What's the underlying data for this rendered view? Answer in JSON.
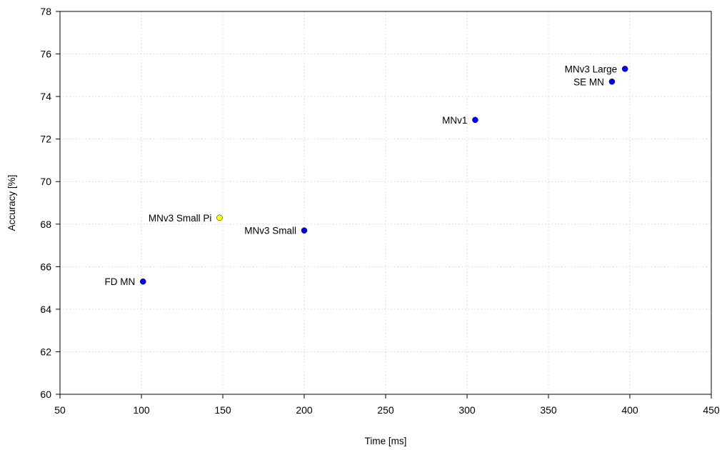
{
  "chart_data": {
    "type": "scatter",
    "title": "",
    "xlabel": "Time [ms]",
    "ylabel": "Accuracy [%]",
    "xlim": [
      50,
      450
    ],
    "ylim": [
      60,
      78
    ],
    "xticks": [
      50,
      100,
      150,
      200,
      250,
      300,
      350,
      400,
      450
    ],
    "yticks": [
      60,
      62,
      64,
      66,
      68,
      70,
      72,
      74,
      76,
      78
    ],
    "grid": true,
    "legend": "none",
    "points": [
      {
        "label": "FD MN",
        "x": 101,
        "y": 65.3,
        "color": "#0000ff"
      },
      {
        "label": "MNv3 Small Pi",
        "x": 148,
        "y": 68.3,
        "color": "#ffff00"
      },
      {
        "label": "MNv3 Small",
        "x": 200,
        "y": 67.7,
        "color": "#0000ff"
      },
      {
        "label": "MNv1",
        "x": 305,
        "y": 72.9,
        "color": "#0000ff"
      },
      {
        "label": "SE MN",
        "x": 389,
        "y": 74.7,
        "color": "#0000ff"
      },
      {
        "label": "MNv3 Large",
        "x": 397,
        "y": 75.3,
        "color": "#0000ff"
      }
    ]
  }
}
